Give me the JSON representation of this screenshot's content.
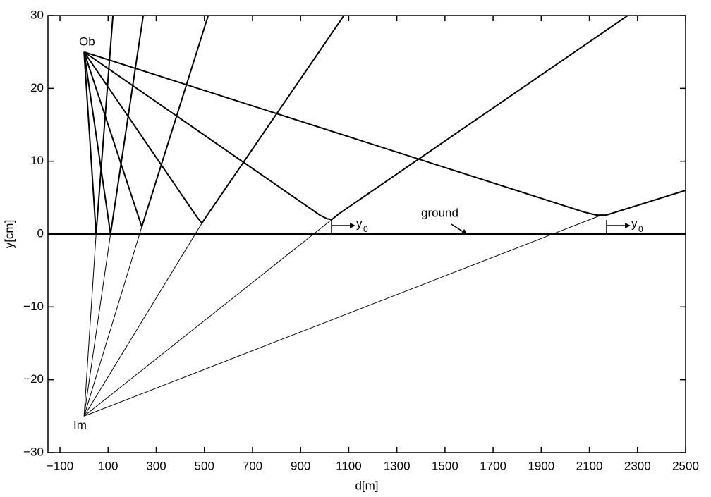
{
  "chart_data": {
    "type": "line",
    "x_label": "d[m]",
    "y_label": "y[cm]",
    "xlim": [
      -150,
      2500
    ],
    "xticks": [
      {
        "value": -100,
        "label": "−100"
      },
      100,
      300,
      500,
      700,
      900,
      1100,
      1300,
      1500,
      1700,
      1900,
      2100,
      2300,
      2500
    ],
    "ylim": [
      -30,
      30
    ],
    "yticks": [
      {
        "value": -30,
        "label": "−30"
      },
      {
        "value": -20,
        "label": "−20"
      },
      {
        "value": -10,
        "label": "−10"
      },
      0,
      10,
      20,
      30
    ],
    "color": "#000000",
    "series": [
      {
        "x": [
          0,
          50,
          120
        ],
        "values": [
          25,
          0,
          30
        ],
        "line_width": 2
      },
      {
        "x": [
          0,
          110,
          246
        ],
        "values": [
          25,
          0,
          30
        ],
        "line_width": 2
      },
      {
        "x": [
          0,
          240,
          516
        ],
        "values": [
          25,
          1,
          30
        ],
        "line_width": 2
      },
      {
        "x": [
          0,
          470,
          490,
          510,
          1080
        ],
        "values": [
          25,
          2.3,
          1.5,
          2.5,
          30
        ],
        "line_width": 2
      },
      {
        "x": [
          0,
          980,
          1010,
          1030,
          1060,
          2260
        ],
        "values": [
          25,
          2.6,
          2.1,
          2.0,
          2.8,
          30
        ],
        "line_width": 2
      },
      {
        "x": [
          0,
          2080,
          2130,
          2170,
          2500
        ],
        "values": [
          25,
          3.0,
          2.6,
          2.6,
          6
        ],
        "line_width": 2
      },
      {
        "x": [
          0,
          50
        ],
        "values": [
          -25,
          0
        ],
        "line_width": 1
      },
      {
        "x": [
          0,
          110
        ],
        "values": [
          -25,
          0
        ],
        "line_width": 1
      },
      {
        "x": [
          0,
          240
        ],
        "values": [
          -25,
          1
        ],
        "line_width": 1
      },
      {
        "x": [
          0,
          490
        ],
        "values": [
          -25,
          1.5
        ],
        "line_width": 1
      },
      {
        "x": [
          0,
          1030
        ],
        "values": [
          -25,
          2.0
        ],
        "line_width": 1
      },
      {
        "x": [
          0,
          2150
        ],
        "values": [
          -25,
          2.6
        ],
        "line_width": 1
      },
      {
        "x": [
          -150,
          2500
        ],
        "values": [
          0,
          0
        ],
        "line_width": 2
      }
    ],
    "annotations": [
      "Ob",
      "Im",
      "ground"
    ],
    "y0_labels": [
      {
        "text": "y",
        "sub": "0"
      },
      {
        "text": "y",
        "sub": "0"
      }
    ]
  }
}
